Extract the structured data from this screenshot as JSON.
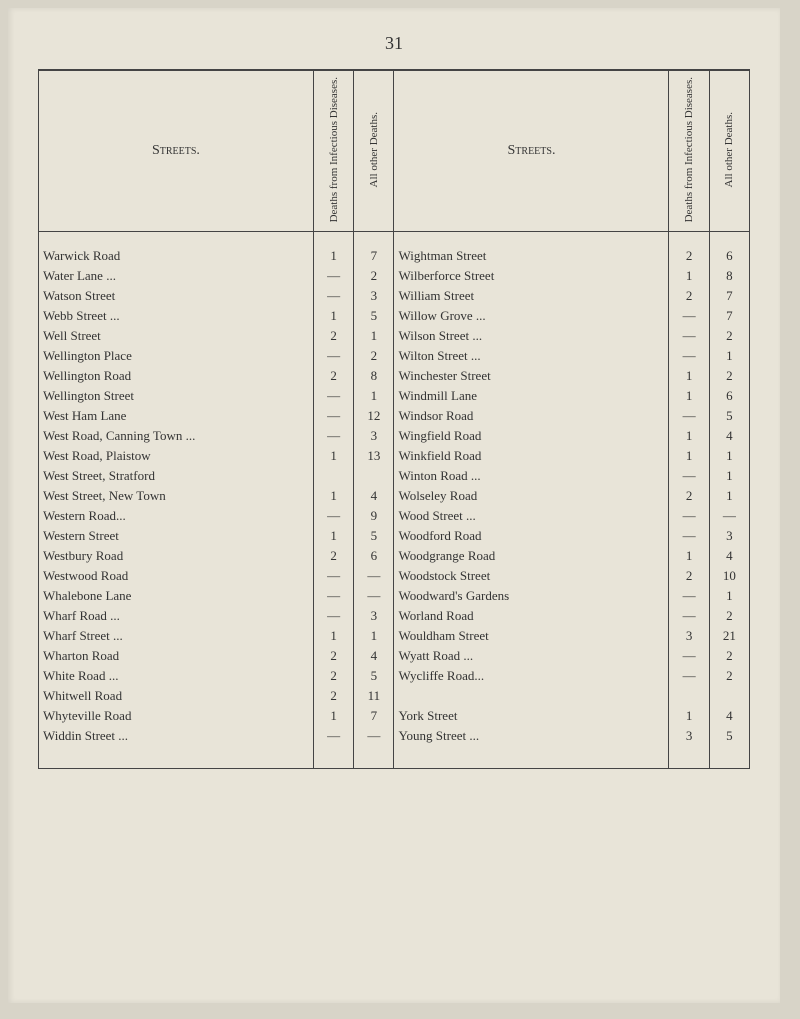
{
  "page_number": "31",
  "headers": {
    "streets": "Streets.",
    "col1": "Deaths from Infectious Diseases.",
    "col2": "All other Deaths."
  },
  "left_rows": [
    {
      "name": "Warwick Road",
      "c1": "1",
      "c2": "7"
    },
    {
      "name": "Water Lane  ...",
      "c1": "—",
      "c2": "2"
    },
    {
      "name": "Watson Street",
      "c1": "—",
      "c2": "3"
    },
    {
      "name": "Webb Street ...",
      "c1": "1",
      "c2": "5"
    },
    {
      "name": "Well Street",
      "c1": "2",
      "c2": "1"
    },
    {
      "name": "Wellington Place",
      "c1": "—",
      "c2": "2"
    },
    {
      "name": "Wellington Road",
      "c1": "2",
      "c2": "8"
    },
    {
      "name": "Wellington Street",
      "c1": "—",
      "c2": "1"
    },
    {
      "name": "West Ham Lane",
      "c1": "—",
      "c2": "12"
    },
    {
      "name": "West Road, Canning Town ...",
      "c1": "—",
      "c2": "3"
    },
    {
      "name": "West Road, Plaistow",
      "c1": "1",
      "c2": "13"
    },
    {
      "name": "West Street, Stratford",
      "c1": "",
      "c2": ""
    },
    {
      "name": "West Street, New Town",
      "c1": "1",
      "c2": "4",
      "merge_prev": true
    },
    {
      "name": "Western Road...",
      "c1": "—",
      "c2": "9"
    },
    {
      "name": "Western Street",
      "c1": "1",
      "c2": "5"
    },
    {
      "name": "Westbury Road",
      "c1": "2",
      "c2": "6"
    },
    {
      "name": "Westwood Road",
      "c1": "—",
      "c2": "—"
    },
    {
      "name": "Whalebone Lane",
      "c1": "—",
      "c2": "—"
    },
    {
      "name": "Wharf Road  ...",
      "c1": "—",
      "c2": "3"
    },
    {
      "name": "Wharf Street ...",
      "c1": "1",
      "c2": "1"
    },
    {
      "name": "Wharton Road",
      "c1": "2",
      "c2": "4"
    },
    {
      "name": "White Road  ...",
      "c1": "2",
      "c2": "5"
    },
    {
      "name": "Whitwell Road",
      "c1": "2",
      "c2": "11"
    },
    {
      "name": "Whyteville Road",
      "c1": "1",
      "c2": "7"
    },
    {
      "name": "Widdin Street ...",
      "c1": "—",
      "c2": "—"
    }
  ],
  "right_rows": [
    {
      "name": "Wightman Street",
      "c1": "2",
      "c2": "6"
    },
    {
      "name": "Wilberforce Street",
      "c1": "1",
      "c2": "8"
    },
    {
      "name": "William Street",
      "c1": "2",
      "c2": "7"
    },
    {
      "name": "Willow Grove ...",
      "c1": "—",
      "c2": "7"
    },
    {
      "name": "Wilson Street ...",
      "c1": "—",
      "c2": "2"
    },
    {
      "name": "Wilton Street ...",
      "c1": "—",
      "c2": "1"
    },
    {
      "name": "Winchester Street",
      "c1": "1",
      "c2": "2"
    },
    {
      "name": "Windmill Lane",
      "c1": "1",
      "c2": "6"
    },
    {
      "name": "Windsor Road",
      "c1": "—",
      "c2": "5"
    },
    {
      "name": "Wingfield Road",
      "c1": "1",
      "c2": "4"
    },
    {
      "name": "Winkfield Road",
      "c1": "1",
      "c2": "1"
    },
    {
      "name": "Winton Road ...",
      "c1": "—",
      "c2": "1"
    },
    {
      "name": "Wolseley Road",
      "c1": "2",
      "c2": "1"
    },
    {
      "name": "Wood Street  ...",
      "c1": "—",
      "c2": "—"
    },
    {
      "name": "Woodford Road",
      "c1": "—",
      "c2": "3"
    },
    {
      "name": "Woodgrange Road",
      "c1": "1",
      "c2": "4"
    },
    {
      "name": "Woodstock Street",
      "c1": "2",
      "c2": "10"
    },
    {
      "name": "Woodward's Gardens",
      "c1": "—",
      "c2": "1"
    },
    {
      "name": "Worland Road",
      "c1": "—",
      "c2": "2"
    },
    {
      "name": "Wouldham Street",
      "c1": "3",
      "c2": "21"
    },
    {
      "name": "Wyatt Road  ...",
      "c1": "—",
      "c2": "2"
    },
    {
      "name": "Wycliffe Road...",
      "c1": "—",
      "c2": "2"
    },
    {
      "name": "",
      "c1": "",
      "c2": "",
      "blank": true
    },
    {
      "name": "York Street",
      "c1": "1",
      "c2": "4"
    },
    {
      "name": "Young Street ...",
      "c1": "3",
      "c2": "5"
    }
  ],
  "colors": {
    "page_bg": "#e8e4d8",
    "outer_bg": "#d8d4c8",
    "border": "#444",
    "text": "#333"
  }
}
